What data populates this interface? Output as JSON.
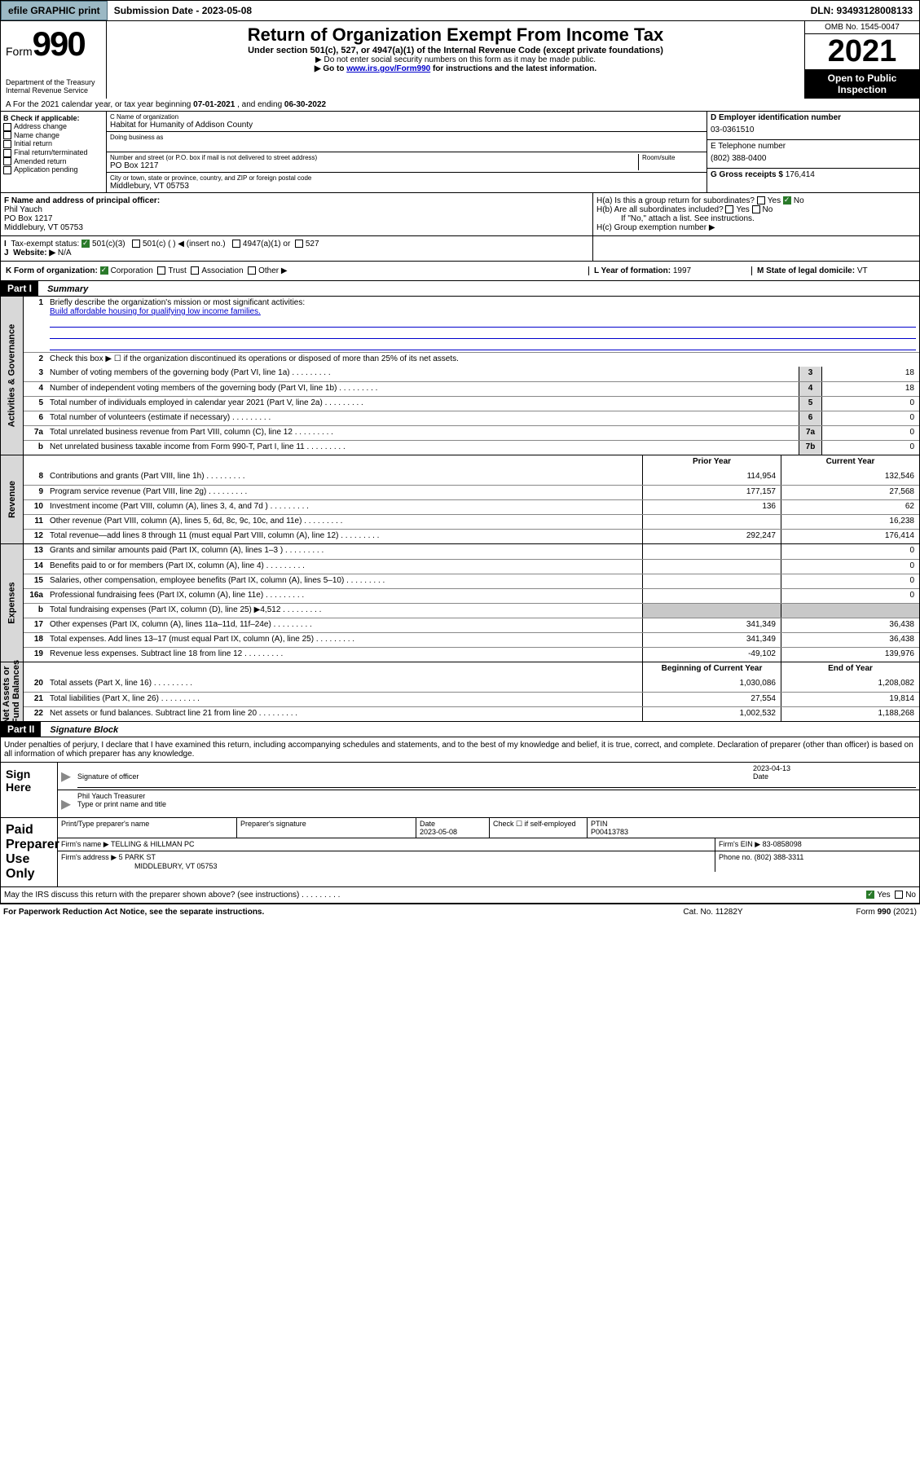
{
  "topbar": {
    "efile": "efile GRAPHIC print",
    "sub_label": "Submission Date - 2023-05-08",
    "dln": "DLN: 93493128008133"
  },
  "header": {
    "form_word": "Form",
    "form_num": "990",
    "dept": "Department of the Treasury\nInternal Revenue Service",
    "title": "Return of Organization Exempt From Income Tax",
    "subtitle": "Under section 501(c), 527, or 4947(a)(1) of the Internal Revenue Code (except private foundations)",
    "instr1": "▶ Do not enter social security numbers on this form as it may be made public.",
    "instr2_pre": "▶ Go to ",
    "instr2_link": "www.irs.gov/Form990",
    "instr2_post": " for instructions and the latest information.",
    "omb": "OMB No. 1545-0047",
    "year": "2021",
    "inspection": "Open to Public Inspection"
  },
  "period": {
    "prefix": "A For the 2021 calendar year, or tax year beginning ",
    "begin": "07-01-2021",
    "mid": " , and ending ",
    "end": "06-30-2022"
  },
  "secB": {
    "label": "B Check if applicable:",
    "items": [
      "Address change",
      "Name change",
      "Initial return",
      "Final return/terminated",
      "Amended return",
      "Application pending"
    ]
  },
  "secC": {
    "name_label": "C Name of organization",
    "name": "Habitat for Humanity of Addison County",
    "dba_label": "Doing business as",
    "addr_label": "Number and street (or P.O. box if mail is not delivered to street address)",
    "room_label": "Room/suite",
    "addr": "PO Box 1217",
    "city_label": "City or town, state or province, country, and ZIP or foreign postal code",
    "city": "Middlebury, VT  05753"
  },
  "secD": {
    "label": "D Employer identification number",
    "val": "03-0361510"
  },
  "secE": {
    "label": "E Telephone number",
    "val": "(802) 388-0400"
  },
  "secG": {
    "label": "G Gross receipts $",
    "val": "176,414"
  },
  "secF": {
    "label": "F Name and address of principal officer:",
    "name": "Phil Yauch",
    "addr1": "PO Box 1217",
    "addr2": "Middlebury, VT  05753"
  },
  "secH": {
    "a": "H(a)  Is this a group return for subordinates?",
    "b": "H(b)  Are all subordinates included?",
    "b_note": "If \"No,\" attach a list. See instructions.",
    "c": "H(c)  Group exemption number ▶",
    "a_no": true
  },
  "secI": {
    "label": "Tax-exempt status:",
    "opts": [
      "501(c)(3)",
      "501(c) (  ) ◀ (insert no.)",
      "4947(a)(1) or",
      "527"
    ],
    "checked_idx": 0
  },
  "secJ": {
    "label": "Website: ▶",
    "val": "N/A"
  },
  "secK": {
    "label": "K Form of organization:",
    "opts": [
      "Corporation",
      "Trust",
      "Association",
      "Other ▶"
    ],
    "checked_idx": 0
  },
  "secL": {
    "label": "L Year of formation:",
    "val": "1997"
  },
  "secM": {
    "label": "M State of legal domicile:",
    "val": "VT"
  },
  "partI": {
    "hdr": "Part I",
    "title": "Summary",
    "q1": "Briefly describe the organization's mission or most significant activities:",
    "mission": "Build affordable housing for qualifying low income families.",
    "q2": "Check this box ▶ ☐  if the organization discontinued its operations or disposed of more than 25% of its net assets.",
    "lines_gov": [
      {
        "n": "3",
        "d": "Number of voting members of the governing body (Part VI, line 1a)",
        "box": "3",
        "v": "18"
      },
      {
        "n": "4",
        "d": "Number of independent voting members of the governing body (Part VI, line 1b)",
        "box": "4",
        "v": "18"
      },
      {
        "n": "5",
        "d": "Total number of individuals employed in calendar year 2021 (Part V, line 2a)",
        "box": "5",
        "v": "0"
      },
      {
        "n": "6",
        "d": "Total number of volunteers (estimate if necessary)",
        "box": "6",
        "v": "0"
      },
      {
        "n": "7a",
        "d": "Total unrelated business revenue from Part VIII, column (C), line 12",
        "box": "7a",
        "v": "0"
      },
      {
        "n": "b",
        "d": "Net unrelated business taxable income from Form 990-T, Part I, line 11",
        "box": "7b",
        "v": "0"
      }
    ],
    "col_hdr1": "Prior Year",
    "col_hdr2": "Current Year",
    "lines_rev": [
      {
        "n": "8",
        "d": "Contributions and grants (Part VIII, line 1h)",
        "c1": "114,954",
        "c2": "132,546"
      },
      {
        "n": "9",
        "d": "Program service revenue (Part VIII, line 2g)",
        "c1": "177,157",
        "c2": "27,568"
      },
      {
        "n": "10",
        "d": "Investment income (Part VIII, column (A), lines 3, 4, and 7d )",
        "c1": "136",
        "c2": "62"
      },
      {
        "n": "11",
        "d": "Other revenue (Part VIII, column (A), lines 5, 6d, 8c, 9c, 10c, and 11e)",
        "c1": "",
        "c2": "16,238"
      },
      {
        "n": "12",
        "d": "Total revenue—add lines 8 through 11 (must equal Part VIII, column (A), line 12)",
        "c1": "292,247",
        "c2": "176,414"
      }
    ],
    "lines_exp": [
      {
        "n": "13",
        "d": "Grants and similar amounts paid (Part IX, column (A), lines 1–3 )",
        "c1": "",
        "c2": "0"
      },
      {
        "n": "14",
        "d": "Benefits paid to or for members (Part IX, column (A), line 4)",
        "c1": "",
        "c2": "0"
      },
      {
        "n": "15",
        "d": "Salaries, other compensation, employee benefits (Part IX, column (A), lines 5–10)",
        "c1": "",
        "c2": "0"
      },
      {
        "n": "16a",
        "d": "Professional fundraising fees (Part IX, column (A), line 11e)",
        "c1": "",
        "c2": "0"
      },
      {
        "n": "b",
        "d": "Total fundraising expenses (Part IX, column (D), line 25) ▶4,512",
        "c1": "__gray__",
        "c2": "__gray__"
      },
      {
        "n": "17",
        "d": "Other expenses (Part IX, column (A), lines 11a–11d, 11f–24e)",
        "c1": "341,349",
        "c2": "36,438"
      },
      {
        "n": "18",
        "d": "Total expenses. Add lines 13–17 (must equal Part IX, column (A), line 25)",
        "c1": "341,349",
        "c2": "36,438"
      },
      {
        "n": "19",
        "d": "Revenue less expenses. Subtract line 18 from line 12",
        "c1": "-49,102",
        "c2": "139,976"
      }
    ],
    "na_hdr1": "Beginning of Current Year",
    "na_hdr2": "End of Year",
    "lines_na": [
      {
        "n": "20",
        "d": "Total assets (Part X, line 16)",
        "c1": "1,030,086",
        "c2": "1,208,082"
      },
      {
        "n": "21",
        "d": "Total liabilities (Part X, line 26)",
        "c1": "27,554",
        "c2": "19,814"
      },
      {
        "n": "22",
        "d": "Net assets or fund balances. Subtract line 21 from line 20",
        "c1": "1,002,532",
        "c2": "1,188,268"
      }
    ]
  },
  "partII": {
    "hdr": "Part II",
    "title": "Signature Block",
    "decl": "Under penalties of perjury, I declare that I have examined this return, including accompanying schedules and statements, and to the best of my knowledge and belief, it is true, correct, and complete. Declaration of preparer (other than officer) is based on all information of which preparer has any knowledge."
  },
  "sign": {
    "label": "Sign Here",
    "sig_label": "Signature of officer",
    "date_label": "Date",
    "date": "2023-04-13",
    "name": "Phil Yauch Treasurer",
    "name_label": "Type or print name and title"
  },
  "prep": {
    "label": "Paid Preparer Use Only",
    "h1": "Print/Type preparer's name",
    "h2": "Preparer's signature",
    "h3": "Date",
    "date": "2023-05-08",
    "h4": "Check ☐ if self-employed",
    "h5": "PTIN",
    "ptin": "P00413783",
    "firm_label": "Firm's name    ▶",
    "firm": "TELLING & HILLMAN PC",
    "ein_label": "Firm's EIN ▶",
    "ein": "83-0858098",
    "addr_label": "Firm's address ▶",
    "addr1": "5 PARK ST",
    "addr2": "MIDDLEBURY, VT  05753",
    "phone_label": "Phone no.",
    "phone": "(802) 388-3311"
  },
  "discuss": {
    "q": "May the IRS discuss this return with the preparer shown above? (see instructions)",
    "yes": true
  },
  "footer": {
    "left": "For Paperwork Reduction Act Notice, see the separate instructions.",
    "mid": "Cat. No. 11282Y",
    "right": "Form 990 (2021)"
  }
}
